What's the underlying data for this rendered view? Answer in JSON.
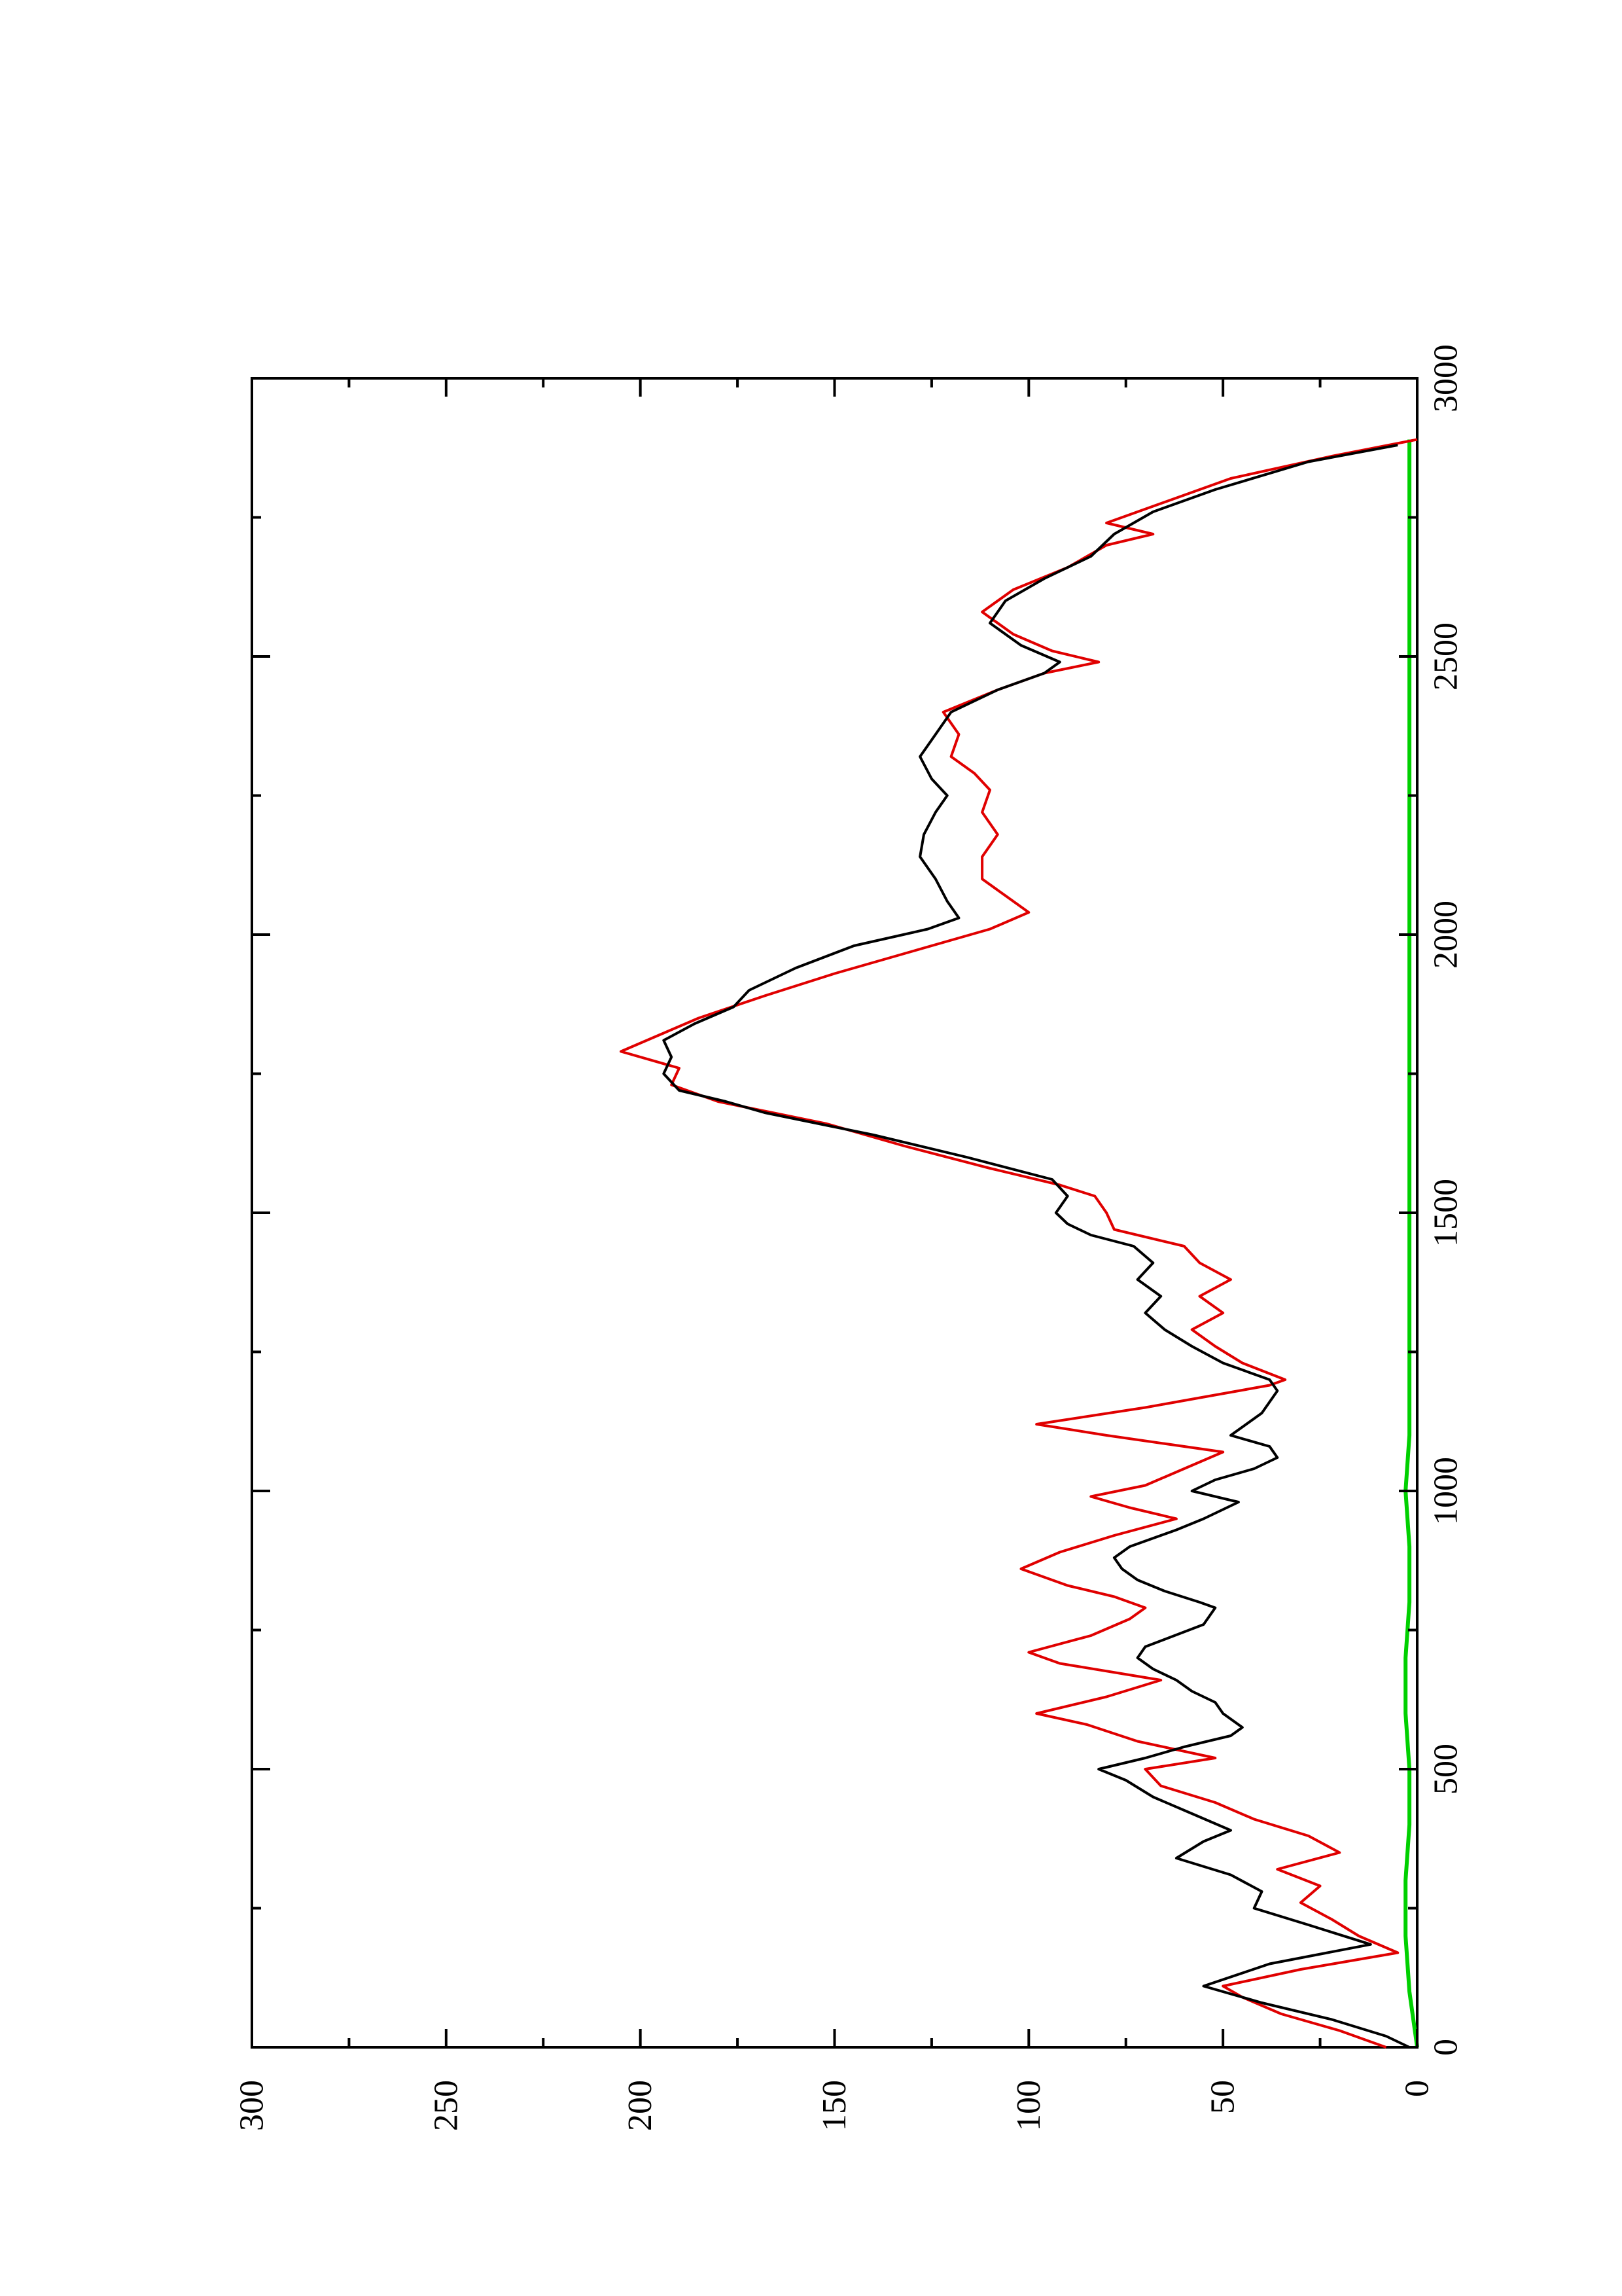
{
  "chart_data": {
    "type": "line",
    "orientation": "rotated-90-ccw",
    "title": "",
    "xlabel": "",
    "ylabel": "",
    "xlim": [
      0,
      3000
    ],
    "ylim": [
      0,
      300
    ],
    "x_ticks": [
      0,
      500,
      1000,
      1500,
      2000,
      2500,
      3000
    ],
    "x_tick_labels": [
      "0",
      "500",
      "1000",
      "1500",
      "2000",
      "2500",
      "3000"
    ],
    "y_ticks": [
      0,
      50,
      100,
      150,
      200,
      250,
      300
    ],
    "y_tick_labels": [
      "0",
      "50",
      "100",
      "150",
      "200",
      "250",
      "300"
    ],
    "grid": false,
    "legend": "none",
    "series": [
      {
        "color": "#000000",
        "style": "solid",
        "points": [
          [
            0,
            2
          ],
          [
            20,
            8
          ],
          [
            50,
            22
          ],
          [
            80,
            40
          ],
          [
            110,
            55
          ],
          [
            150,
            38
          ],
          [
            185,
            12
          ],
          [
            220,
            28
          ],
          [
            250,
            42
          ],
          [
            280,
            40
          ],
          [
            310,
            48
          ],
          [
            340,
            62
          ],
          [
            370,
            55
          ],
          [
            390,
            48
          ],
          [
            420,
            58
          ],
          [
            450,
            68
          ],
          [
            480,
            75
          ],
          [
            500,
            82
          ],
          [
            520,
            70
          ],
          [
            540,
            60
          ],
          [
            560,
            48
          ],
          [
            575,
            45
          ],
          [
            600,
            50
          ],
          [
            620,
            52
          ],
          [
            640,
            58
          ],
          [
            660,
            62
          ],
          [
            680,
            68
          ],
          [
            700,
            72
          ],
          [
            720,
            70
          ],
          [
            760,
            55
          ],
          [
            790,
            52
          ],
          [
            800,
            56
          ],
          [
            820,
            65
          ],
          [
            840,
            72
          ],
          [
            860,
            76
          ],
          [
            880,
            78
          ],
          [
            900,
            74
          ],
          [
            930,
            62
          ],
          [
            950,
            55
          ],
          [
            980,
            46
          ],
          [
            1000,
            58
          ],
          [
            1020,
            52
          ],
          [
            1040,
            42
          ],
          [
            1060,
            36
          ],
          [
            1080,
            38
          ],
          [
            1100,
            48
          ],
          [
            1120,
            44
          ],
          [
            1140,
            40
          ],
          [
            1160,
            38
          ],
          [
            1180,
            36
          ],
          [
            1200,
            38
          ],
          [
            1230,
            50
          ],
          [
            1260,
            58
          ],
          [
            1290,
            65
          ],
          [
            1320,
            70
          ],
          [
            1350,
            66
          ],
          [
            1380,
            72
          ],
          [
            1410,
            68
          ],
          [
            1440,
            73
          ],
          [
            1460,
            84
          ],
          [
            1480,
            90
          ],
          [
            1500,
            93
          ],
          [
            1530,
            90
          ],
          [
            1560,
            94
          ],
          [
            1600,
            116
          ],
          [
            1640,
            140
          ],
          [
            1680,
            168
          ],
          [
            1700,
            178
          ],
          [
            1720,
            190
          ],
          [
            1750,
            194
          ],
          [
            1780,
            192
          ],
          [
            1810,
            194
          ],
          [
            1840,
            186
          ],
          [
            1870,
            176
          ],
          [
            1900,
            172
          ],
          [
            1940,
            160
          ],
          [
            1980,
            145
          ],
          [
            2010,
            126
          ],
          [
            2030,
            118
          ],
          [
            2060,
            121
          ],
          [
            2100,
            124
          ],
          [
            2140,
            128
          ],
          [
            2180,
            127
          ],
          [
            2220,
            124
          ],
          [
            2250,
            121
          ],
          [
            2280,
            125
          ],
          [
            2320,
            128
          ],
          [
            2360,
            124
          ],
          [
            2400,
            120
          ],
          [
            2440,
            108
          ],
          [
            2470,
            96
          ],
          [
            2490,
            92
          ],
          [
            2520,
            102
          ],
          [
            2560,
            110
          ],
          [
            2600,
            106
          ],
          [
            2640,
            96
          ],
          [
            2680,
            84
          ],
          [
            2720,
            78
          ],
          [
            2760,
            68
          ],
          [
            2800,
            52
          ],
          [
            2850,
            28
          ],
          [
            2880,
            5
          ]
        ]
      },
      {
        "color": "#e00000",
        "style": "solid",
        "points": [
          [
            0,
            8
          ],
          [
            30,
            20
          ],
          [
            60,
            35
          ],
          [
            90,
            45
          ],
          [
            110,
            50
          ],
          [
            140,
            30
          ],
          [
            170,
            5
          ],
          [
            200,
            15
          ],
          [
            230,
            22
          ],
          [
            260,
            30
          ],
          [
            290,
            25
          ],
          [
            320,
            36
          ],
          [
            350,
            20
          ],
          [
            380,
            28
          ],
          [
            410,
            42
          ],
          [
            440,
            52
          ],
          [
            470,
            66
          ],
          [
            500,
            70
          ],
          [
            520,
            52
          ],
          [
            550,
            72
          ],
          [
            580,
            85
          ],
          [
            600,
            98
          ],
          [
            630,
            80
          ],
          [
            660,
            66
          ],
          [
            690,
            92
          ],
          [
            710,
            100
          ],
          [
            740,
            84
          ],
          [
            770,
            74
          ],
          [
            790,
            70
          ],
          [
            810,
            78
          ],
          [
            830,
            90
          ],
          [
            860,
            102
          ],
          [
            890,
            92
          ],
          [
            920,
            78
          ],
          [
            950,
            62
          ],
          [
            970,
            74
          ],
          [
            990,
            84
          ],
          [
            1010,
            70
          ],
          [
            1040,
            60
          ],
          [
            1070,
            50
          ],
          [
            1100,
            80
          ],
          [
            1120,
            98
          ],
          [
            1150,
            70
          ],
          [
            1170,
            54
          ],
          [
            1190,
            38
          ],
          [
            1200,
            34
          ],
          [
            1230,
            45
          ],
          [
            1260,
            52
          ],
          [
            1290,
            58
          ],
          [
            1320,
            50
          ],
          [
            1350,
            56
          ],
          [
            1380,
            48
          ],
          [
            1410,
            56
          ],
          [
            1440,
            60
          ],
          [
            1470,
            78
          ],
          [
            1500,
            80
          ],
          [
            1530,
            83
          ],
          [
            1550,
            92
          ],
          [
            1580,
            110
          ],
          [
            1620,
            132
          ],
          [
            1660,
            152
          ],
          [
            1700,
            180
          ],
          [
            1730,
            192
          ],
          [
            1760,
            190
          ],
          [
            1790,
            205
          ],
          [
            1820,
            195
          ],
          [
            1850,
            185
          ],
          [
            1890,
            168
          ],
          [
            1930,
            150
          ],
          [
            1970,
            130
          ],
          [
            2010,
            110
          ],
          [
            2040,
            100
          ],
          [
            2070,
            106
          ],
          [
            2100,
            112
          ],
          [
            2140,
            112
          ],
          [
            2180,
            108
          ],
          [
            2220,
            112
          ],
          [
            2260,
            110
          ],
          [
            2290,
            114
          ],
          [
            2320,
            120
          ],
          [
            2360,
            118
          ],
          [
            2400,
            122
          ],
          [
            2440,
            108
          ],
          [
            2470,
            96
          ],
          [
            2490,
            82
          ],
          [
            2510,
            94
          ],
          [
            2540,
            104
          ],
          [
            2580,
            112
          ],
          [
            2620,
            104
          ],
          [
            2660,
            90
          ],
          [
            2700,
            80
          ],
          [
            2720,
            68
          ],
          [
            2740,
            80
          ],
          [
            2780,
            64
          ],
          [
            2820,
            48
          ],
          [
            2860,
            22
          ],
          [
            2890,
            0
          ]
        ]
      },
      {
        "color": "#00d000",
        "style": "solid",
        "points": [
          [
            0,
            0
          ],
          [
            100,
            2
          ],
          [
            200,
            3
          ],
          [
            300,
            3
          ],
          [
            400,
            2
          ],
          [
            500,
            2
          ],
          [
            600,
            3
          ],
          [
            700,
            3
          ],
          [
            800,
            2
          ],
          [
            900,
            2
          ],
          [
            1000,
            3
          ],
          [
            1100,
            2
          ],
          [
            1200,
            2
          ],
          [
            1300,
            2
          ],
          [
            1400,
            2
          ],
          [
            1500,
            2
          ],
          [
            1600,
            2
          ],
          [
            1700,
            2
          ],
          [
            1800,
            2
          ],
          [
            1900,
            2
          ],
          [
            2000,
            2
          ],
          [
            2100,
            2
          ],
          [
            2200,
            2
          ],
          [
            2300,
            2
          ],
          [
            2400,
            2
          ],
          [
            2500,
            2
          ],
          [
            2600,
            2
          ],
          [
            2700,
            2
          ],
          [
            2800,
            2
          ],
          [
            2890,
            2
          ]
        ]
      }
    ]
  }
}
